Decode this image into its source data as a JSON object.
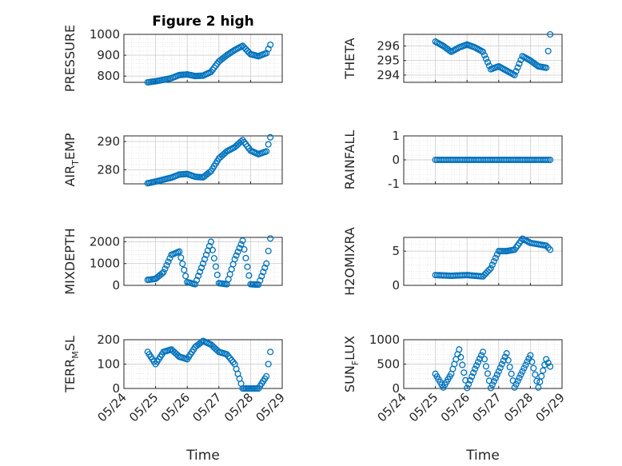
{
  "figure": {
    "title": "Figure 2 high",
    "xlabel": "Time",
    "date_ticks": [
      "05/24",
      "05/25",
      "05/26",
      "05/27",
      "05/28",
      "05/29"
    ],
    "marker_color": "#0072BD",
    "grid_color": "#d0d0d0"
  },
  "chart_data": [
    {
      "type": "scatter",
      "id": "pressure",
      "title": "Figure 2 high",
      "ylabel": "PRESSURE",
      "xlim": [
        "05/24",
        "05/29"
      ],
      "ylim": [
        770,
        1000
      ],
      "yticks": [
        800,
        900,
        1000
      ],
      "x": [
        "05/24 18:00",
        "05/25 00:00",
        "05/25 06:00",
        "05/25 12:00",
        "05/25 18:00",
        "05/26 00:00",
        "05/26 06:00",
        "05/26 12:00",
        "05/26 18:00",
        "05/27 00:00",
        "05/27 06:00",
        "05/27 12:00",
        "05/27 18:00",
        "05/28 00:00",
        "05/28 06:00",
        "05/28 12:00",
        "05/28 15:00"
      ],
      "y": [
        770,
        775,
        782,
        790,
        805,
        808,
        800,
        802,
        820,
        870,
        900,
        925,
        945,
        905,
        895,
        910,
        950
      ]
    },
    {
      "type": "scatter",
      "id": "theta",
      "ylabel": "THETA",
      "xlim": [
        "05/24",
        "05/29"
      ],
      "ylim": [
        293.5,
        296.8
      ],
      "yticks": [
        294,
        295,
        296
      ],
      "x": [
        "05/25 00:00",
        "05/25 06:00",
        "05/25 12:00",
        "05/25 18:00",
        "05/26 00:00",
        "05/26 06:00",
        "05/26 12:00",
        "05/26 18:00",
        "05/27 00:00",
        "05/27 06:00",
        "05/27 12:00",
        "05/27 18:00",
        "05/28 00:00",
        "05/28 06:00",
        "05/28 12:00",
        "05/28 15:00"
      ],
      "y": [
        296.3,
        296.0,
        295.6,
        295.9,
        296.1,
        295.9,
        295.6,
        294.4,
        294.6,
        294.3,
        294.0,
        295.3,
        295.0,
        294.6,
        294.5,
        296.8
      ]
    },
    {
      "type": "scatter",
      "id": "air_temp",
      "ylabel": "AIR_TEMP",
      "xlim": [
        "05/24",
        "05/29"
      ],
      "ylim": [
        275,
        292
      ],
      "yticks": [
        280,
        290
      ],
      "x": [
        "05/24 18:00",
        "05/25 00:00",
        "05/25 06:00",
        "05/25 12:00",
        "05/25 18:00",
        "05/26 00:00",
        "05/26 06:00",
        "05/26 12:00",
        "05/26 18:00",
        "05/27 00:00",
        "05/27 06:00",
        "05/27 12:00",
        "05/27 18:00",
        "05/28 00:00",
        "05/28 06:00",
        "05/28 12:00",
        "05/28 15:00"
      ],
      "y": [
        275.2,
        275.8,
        276.5,
        277.2,
        278.3,
        278.5,
        277.5,
        277.3,
        279.5,
        284.0,
        286.5,
        288.0,
        290.5,
        286.8,
        285.5,
        286.5,
        291.5
      ]
    },
    {
      "type": "scatter",
      "id": "rainfall",
      "ylabel": "RAINFALL",
      "xlim": [
        "05/24",
        "05/29"
      ],
      "ylim": [
        -1,
        1
      ],
      "yticks": [
        -1,
        0,
        1
      ],
      "x": [
        "05/25 00:00",
        "05/26 00:00",
        "05/27 00:00",
        "05/28 00:00",
        "05/28 15:00"
      ],
      "y": [
        0,
        0,
        0,
        0,
        0
      ]
    },
    {
      "type": "scatter",
      "id": "mixdepth",
      "ylabel": "MIXDEPTH",
      "xlim": [
        "05/24",
        "05/29"
      ],
      "ylim": [
        0,
        2200
      ],
      "yticks": [
        0,
        1000,
        2000
      ],
      "x": [
        "05/24 18:00",
        "05/25 00:00",
        "05/25 06:00",
        "05/25 12:00",
        "05/25 18:00",
        "05/26 00:00",
        "05/26 06:00",
        "05/26 12:00",
        "05/26 18:00",
        "05/27 00:00",
        "05/27 06:00",
        "05/27 12:00",
        "05/27 18:00",
        "05/28 00:00",
        "05/28 06:00",
        "05/28 12:00",
        "05/28 15:00"
      ],
      "y": [
        250,
        300,
        600,
        1400,
        1550,
        150,
        50,
        1000,
        2000,
        100,
        50,
        1200,
        2050,
        50,
        30,
        1000,
        2150
      ]
    },
    {
      "type": "scatter",
      "id": "h2omixra",
      "ylabel": "H2OMIXRA",
      "xlim": [
        "05/24",
        "05/29"
      ],
      "ylim": [
        0,
        7
      ],
      "yticks": [
        0,
        5
      ],
      "x": [
        "05/25 00:00",
        "05/25 12:00",
        "05/26 00:00",
        "05/26 12:00",
        "05/26 18:00",
        "05/27 00:00",
        "05/27 06:00",
        "05/27 12:00",
        "05/27 18:00",
        "05/28 00:00",
        "05/28 12:00",
        "05/28 15:00"
      ],
      "y": [
        1.5,
        1.4,
        1.5,
        1.3,
        2.5,
        5.0,
        5.0,
        5.2,
        6.8,
        6.2,
        5.8,
        5.2
      ]
    },
    {
      "type": "scatter",
      "id": "terr_msl",
      "ylabel": "TERR_MSL",
      "xlim": [
        "05/24",
        "05/29"
      ],
      "ylim": [
        0,
        200
      ],
      "yticks": [
        0,
        100,
        200
      ],
      "x": [
        "05/24 18:00",
        "05/25 00:00",
        "05/25 06:00",
        "05/25 12:00",
        "05/25 18:00",
        "05/26 00:00",
        "05/26 06:00",
        "05/26 12:00",
        "05/26 18:00",
        "05/27 00:00",
        "05/27 06:00",
        "05/27 12:00",
        "05/27 18:00",
        "05/28 00:00",
        "05/28 06:00",
        "05/28 12:00",
        "05/28 15:00"
      ],
      "y": [
        150,
        100,
        150,
        160,
        130,
        120,
        170,
        195,
        180,
        150,
        140,
        100,
        0,
        0,
        0,
        50,
        150
      ]
    },
    {
      "type": "scatter",
      "id": "sun_flux",
      "ylabel": "SUN_FLUX",
      "xlim": [
        "05/24",
        "05/29"
      ],
      "ylim": [
        0,
        1000
      ],
      "yticks": [
        0,
        500,
        1000
      ],
      "x": [
        "05/25 00:00",
        "05/25 06:00",
        "05/25 12:00",
        "05/25 18:00",
        "05/26 00:00",
        "05/26 06:00",
        "05/26 12:00",
        "05/26 18:00",
        "05/27 00:00",
        "05/27 06:00",
        "05/27 12:00",
        "05/27 18:00",
        "05/28 00:00",
        "05/28 06:00",
        "05/28 12:00",
        "05/28 15:00"
      ],
      "y": [
        300,
        20,
        300,
        800,
        10,
        400,
        750,
        10,
        350,
        720,
        20,
        350,
        680,
        20,
        600,
        450
      ]
    }
  ]
}
